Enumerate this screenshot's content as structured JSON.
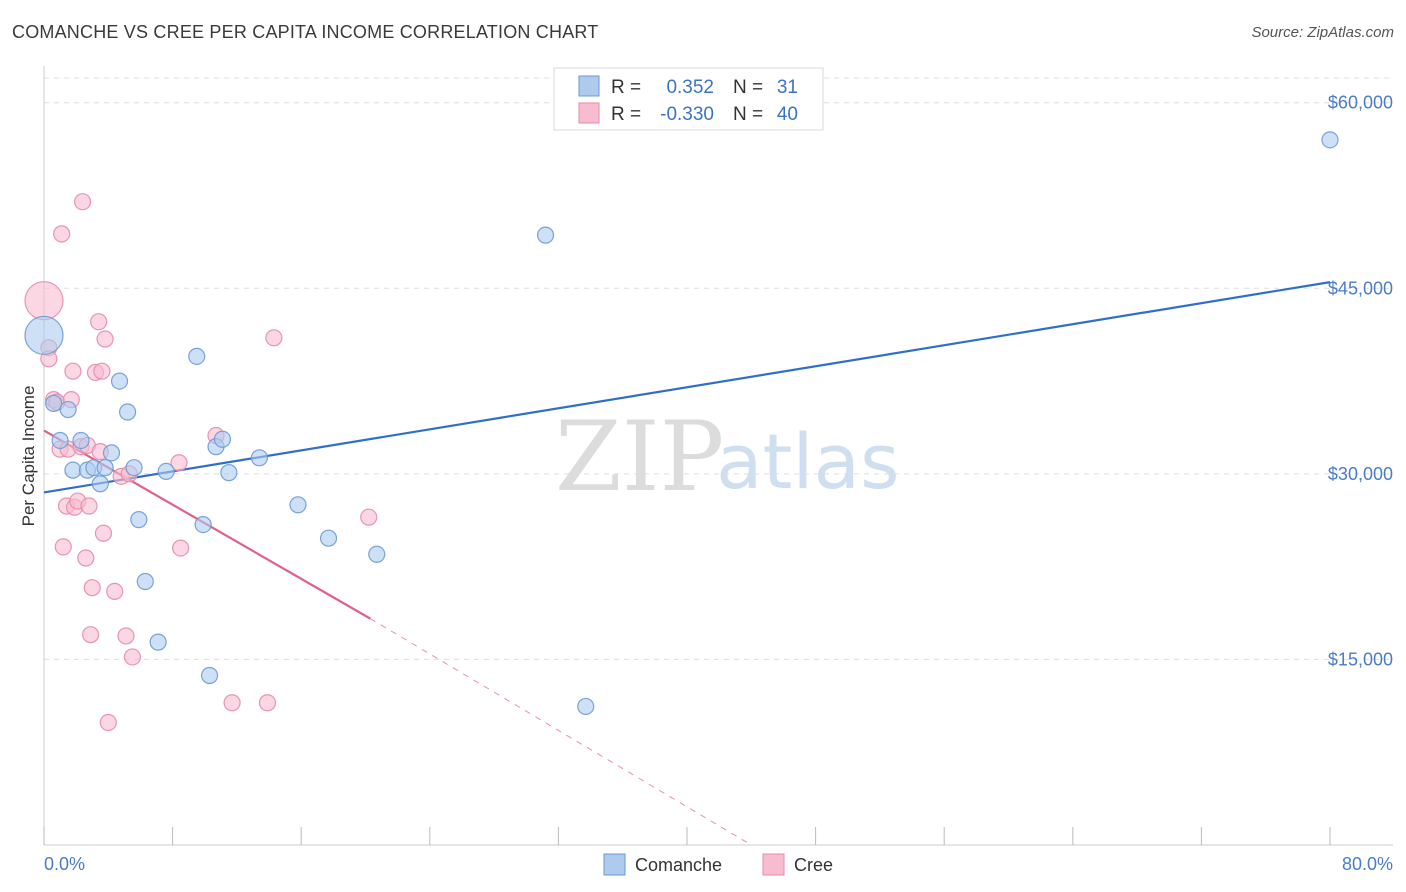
{
  "header": {
    "title": "COMANCHE VS CREE PER CAPITA INCOME CORRELATION CHART",
    "source": "Source: ZipAtlas.com"
  },
  "watermark": {
    "zip": "ZIP",
    "atlas": "atlas"
  },
  "legend": {
    "rows": [
      {
        "r_label": "R =",
        "r_value": "0.352",
        "n_label": "N =",
        "n_value": "31"
      },
      {
        "r_label": "R =",
        "r_value": "-0.330",
        "n_label": "N =",
        "n_value": "40"
      }
    ]
  },
  "colors": {
    "comanche_fill": "#aecbee",
    "comanche_stroke": "#6a9ad8",
    "comanche_line": "#2f6fc9",
    "cree_fill": "#f7bccf",
    "cree_stroke": "#e88aa8",
    "cree_line": "#e0608a",
    "tick_text": "#4a7cc9"
  },
  "chart_data": {
    "type": "scatter",
    "title": "COMANCHE VS CREE PER CAPITA INCOME CORRELATION CHART",
    "xlabel": "",
    "ylabel": "Per Capita Income",
    "xlim": [
      0,
      80
    ],
    "ylim": [
      0,
      62000
    ],
    "x_tick_labels": [
      "0.0%",
      "80.0%"
    ],
    "y_ticks": [
      15000,
      30000,
      45000,
      60000
    ],
    "y_tick_labels": [
      "$15,000",
      "$30,000",
      "$45,000",
      "$60,000"
    ],
    "grid": true,
    "legend_position": "top-center",
    "series": [
      {
        "name": "Comanche",
        "r": 0.352,
        "n": 31,
        "trend": {
          "x": [
            0,
            80
          ],
          "y": [
            28500,
            45500
          ]
        },
        "points": [
          {
            "x": 0.0,
            "y": 41200,
            "big": true
          },
          {
            "x": 0.6,
            "y": 35700
          },
          {
            "x": 1.0,
            "y": 32700
          },
          {
            "x": 1.5,
            "y": 35200
          },
          {
            "x": 1.8,
            "y": 30300
          },
          {
            "x": 2.3,
            "y": 32700
          },
          {
            "x": 2.7,
            "y": 30300
          },
          {
            "x": 3.1,
            "y": 30500
          },
          {
            "x": 3.5,
            "y": 29200
          },
          {
            "x": 3.8,
            "y": 30500
          },
          {
            "x": 4.2,
            "y": 31700
          },
          {
            "x": 4.7,
            "y": 37500
          },
          {
            "x": 5.2,
            "y": 35000
          },
          {
            "x": 5.6,
            "y": 30500
          },
          {
            "x": 5.9,
            "y": 26300
          },
          {
            "x": 6.3,
            "y": 21300
          },
          {
            "x": 7.1,
            "y": 16400
          },
          {
            "x": 7.6,
            "y": 30200
          },
          {
            "x": 9.5,
            "y": 39500
          },
          {
            "x": 9.9,
            "y": 25900
          },
          {
            "x": 10.3,
            "y": 13700
          },
          {
            "x": 10.7,
            "y": 32200
          },
          {
            "x": 11.1,
            "y": 32800
          },
          {
            "x": 11.5,
            "y": 30100
          },
          {
            "x": 13.4,
            "y": 31300
          },
          {
            "x": 15.8,
            "y": 27500
          },
          {
            "x": 17.7,
            "y": 24800
          },
          {
            "x": 20.7,
            "y": 23500
          },
          {
            "x": 31.2,
            "y": 49300
          },
          {
            "x": 33.7,
            "y": 11200
          },
          {
            "x": 80.0,
            "y": 57000
          }
        ]
      },
      {
        "name": "Cree",
        "r": -0.33,
        "n": 40,
        "trend": {
          "x": [
            0,
            20.3
          ],
          "y": [
            33500,
            18300
          ],
          "dash_to": {
            "x": 44,
            "y": 0
          }
        },
        "points": [
          {
            "x": 0.0,
            "y": 44000,
            "big": true
          },
          {
            "x": 0.3,
            "y": 40200
          },
          {
            "x": 0.3,
            "y": 39300
          },
          {
            "x": 0.6,
            "y": 36000
          },
          {
            "x": 0.8,
            "y": 35800
          },
          {
            "x": 1.0,
            "y": 32000
          },
          {
            "x": 1.1,
            "y": 49400
          },
          {
            "x": 1.2,
            "y": 24100
          },
          {
            "x": 1.4,
            "y": 27400
          },
          {
            "x": 1.5,
            "y": 32000
          },
          {
            "x": 1.7,
            "y": 36000
          },
          {
            "x": 1.8,
            "y": 38300
          },
          {
            "x": 1.9,
            "y": 27300
          },
          {
            "x": 2.1,
            "y": 27800
          },
          {
            "x": 2.3,
            "y": 32200
          },
          {
            "x": 2.4,
            "y": 52000
          },
          {
            "x": 2.6,
            "y": 23200
          },
          {
            "x": 2.7,
            "y": 32300
          },
          {
            "x": 2.8,
            "y": 27400
          },
          {
            "x": 2.9,
            "y": 17000
          },
          {
            "x": 3.0,
            "y": 20800
          },
          {
            "x": 3.2,
            "y": 38200
          },
          {
            "x": 3.4,
            "y": 42300
          },
          {
            "x": 3.5,
            "y": 31800
          },
          {
            "x": 3.6,
            "y": 38300
          },
          {
            "x": 3.7,
            "y": 25200
          },
          {
            "x": 3.8,
            "y": 40900
          },
          {
            "x": 4.0,
            "y": 9900
          },
          {
            "x": 4.4,
            "y": 20500
          },
          {
            "x": 4.8,
            "y": 29800
          },
          {
            "x": 5.1,
            "y": 16900
          },
          {
            "x": 5.3,
            "y": 30000
          },
          {
            "x": 5.5,
            "y": 15200
          },
          {
            "x": 8.4,
            "y": 30900
          },
          {
            "x": 8.5,
            "y": 24000
          },
          {
            "x": 10.7,
            "y": 33100
          },
          {
            "x": 11.7,
            "y": 11500
          },
          {
            "x": 13.9,
            "y": 11500
          },
          {
            "x": 14.3,
            "y": 41000
          },
          {
            "x": 20.2,
            "y": 26500
          }
        ]
      }
    ]
  }
}
